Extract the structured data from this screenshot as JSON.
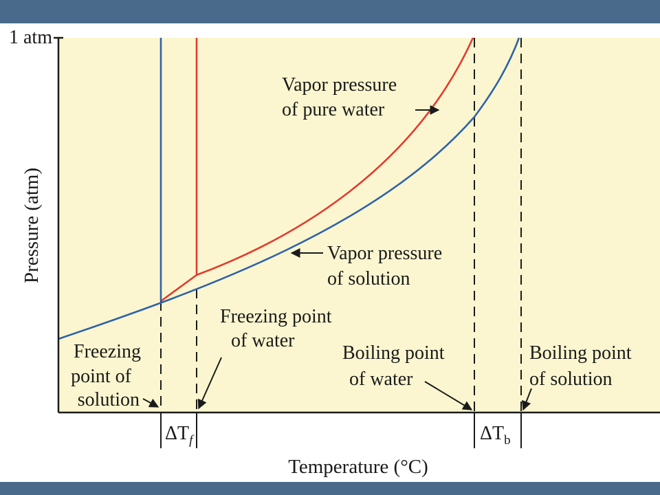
{
  "colors": {
    "band": "#4a6a8c",
    "plot_background": "#fbf6cf",
    "pure_water_curve": "#e23a2f",
    "solution_curve": "#2e62a8",
    "ink": "#1a1a1a"
  },
  "diagram": {
    "y_tick_label": "1 atm",
    "y_axis_label": "Pressure (atm)",
    "x_axis_label": "Temperature (°C)",
    "vapor_pure_label": [
      "Vapor pressure",
      "of pure water"
    ],
    "vapor_solution_label": [
      "Vapor pressure",
      "of solution"
    ],
    "freezing_water_label": [
      "Freezing point",
      "of water"
    ],
    "freezing_solution_label": [
      "Freezing",
      "point of",
      "solution"
    ],
    "boiling_water_label": [
      "Boiling point",
      "of water"
    ],
    "boiling_solution_label": [
      "Boiling point",
      "of solution"
    ],
    "delta_tf": {
      "symbol": "ΔT",
      "subscript": "f"
    },
    "delta_tb": {
      "symbol": "ΔT",
      "subscript": "b"
    }
  }
}
